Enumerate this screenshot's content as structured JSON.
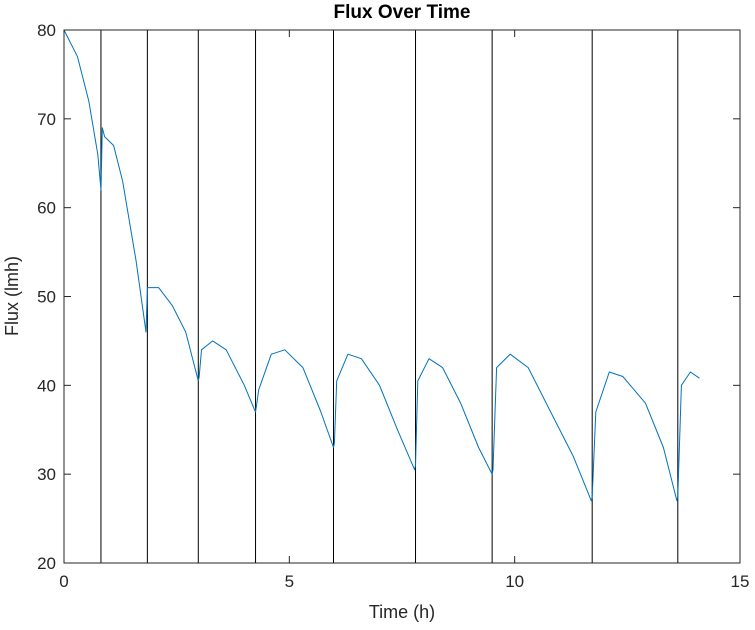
{
  "chart_data": {
    "type": "line",
    "title": "Flux Over Time",
    "xlabel": "Time (h)",
    "ylabel": "Flux (lmh)",
    "xlim": [
      0,
      15
    ],
    "ylim": [
      20,
      80
    ],
    "xticks": [
      0,
      5,
      10,
      15
    ],
    "yticks": [
      20,
      30,
      40,
      50,
      60,
      70,
      80
    ],
    "grid": false,
    "series": [
      {
        "color": "#0072BD",
        "x": [
          0,
          0.3,
          0.55,
          0.75,
          0.82,
          0.85,
          0.9,
          1.1,
          1.3,
          1.6,
          1.82,
          1.85,
          1.9,
          2.1,
          2.4,
          2.7,
          2.98,
          3.0,
          3.05,
          3.3,
          3.6,
          4.0,
          4.25,
          4.28,
          4.32,
          4.6,
          4.9,
          5.3,
          5.7,
          5.98,
          6.0,
          6.05,
          6.3,
          6.6,
          7.0,
          7.4,
          7.78,
          7.8,
          7.85,
          8.1,
          8.4,
          8.8,
          9.2,
          9.5,
          9.52,
          9.6,
          9.9,
          10.3,
          10.8,
          11.3,
          11.7,
          11.72,
          11.8,
          12.1,
          12.4,
          12.9,
          13.3,
          13.6,
          13.62,
          13.7,
          13.9,
          14.1
        ],
        "y": [
          80,
          77,
          72,
          66,
          62,
          69,
          68,
          67,
          63,
          54,
          46,
          51,
          51,
          51,
          49,
          46,
          40.5,
          41,
          44,
          45,
          44,
          40,
          37,
          38,
          39.5,
          43.5,
          44,
          42,
          37,
          33,
          33.5,
          40.5,
          43.5,
          43,
          40,
          35,
          30.5,
          31,
          40.5,
          43,
          42,
          38,
          33,
          30,
          30.5,
          42,
          43.5,
          42,
          37,
          32,
          27,
          27.5,
          37,
          41.5,
          41,
          38,
          33,
          27,
          27.5,
          40,
          41.5,
          40.8
        ]
      }
    ],
    "vlines": [
      0.82,
      1.85,
      2.98,
      4.25,
      5.98,
      7.8,
      9.5,
      11.72,
      13.62
    ]
  }
}
